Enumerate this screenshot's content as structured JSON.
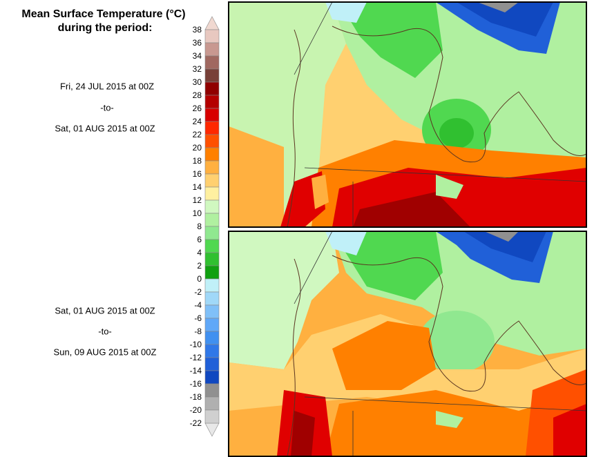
{
  "header": {
    "title": "Mean Surface Temperature (°C)",
    "subtitle": "during the period:"
  },
  "periods": [
    {
      "start": "Fri, 24 JUL 2015 at 00Z",
      "sep": "-to-",
      "end": "Sat, 01 AUG 2015 at 00Z"
    },
    {
      "start": "Sat, 01 AUG 2015 at 00Z",
      "sep": "-to-",
      "end": "Sun, 09 AUG 2015 at 00Z"
    }
  ],
  "colorbar": {
    "ticks": [
      38,
      36,
      34,
      32,
      30,
      28,
      26,
      24,
      22,
      20,
      18,
      16,
      14,
      12,
      10,
      8,
      6,
      4,
      2,
      0,
      -2,
      -4,
      -6,
      -8,
      -10,
      -12,
      -14,
      -16,
      -18,
      -20,
      -22
    ],
    "colors": [
      "#e8c8c0",
      "#c89890",
      "#a06860",
      "#784038",
      "#900000",
      "#b40000",
      "#d80000",
      "#ff2800",
      "#ff5000",
      "#ff8000",
      "#ffb040",
      "#ffd070",
      "#fff0a0",
      "#d0f8c0",
      "#b0f0a0",
      "#90e890",
      "#50d850",
      "#30c030",
      "#10a010",
      "#c0f0f8",
      "#a0d8f8",
      "#80c0f8",
      "#60a8f8",
      "#4090f0",
      "#3078e8",
      "#2060d8",
      "#1048c0",
      "#909090",
      "#b0b0b0",
      "#d0d0d0"
    ],
    "over_color": "#f0d8d0",
    "under_color": "#e8e8e8"
  }
}
